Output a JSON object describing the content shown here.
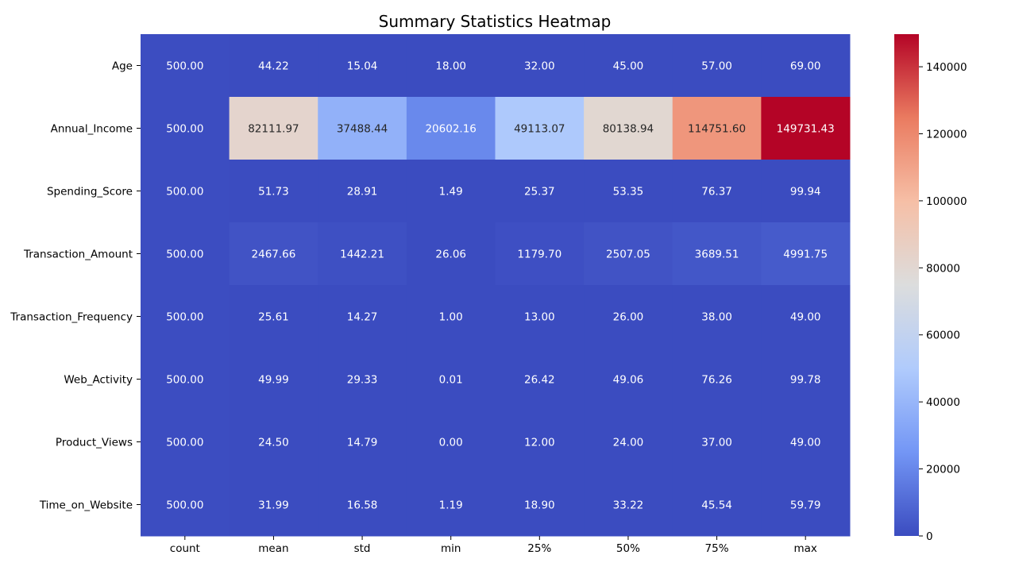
{
  "chart_data": {
    "type": "heatmap",
    "title": "Summary Statistics Heatmap",
    "columns": [
      "count",
      "mean",
      "std",
      "min",
      "25%",
      "50%",
      "75%",
      "max"
    ],
    "rows": [
      "Age",
      "Annual_Income",
      "Spending_Score",
      "Transaction_Amount",
      "Transaction_Frequency",
      "Web_Activity",
      "Product_Views",
      "Time_on_Website"
    ],
    "values": [
      [
        500.0,
        44.22,
        15.04,
        18.0,
        32.0,
        45.0,
        57.0,
        69.0
      ],
      [
        500.0,
        82111.97,
        37488.44,
        20602.16,
        49113.07,
        80138.94,
        114751.6,
        149731.43
      ],
      [
        500.0,
        51.73,
        28.91,
        1.49,
        25.37,
        53.35,
        76.37,
        99.94
      ],
      [
        500.0,
        2467.66,
        1442.21,
        26.06,
        1179.7,
        2507.05,
        3689.51,
        4991.75
      ],
      [
        500.0,
        25.61,
        14.27,
        1.0,
        13.0,
        26.0,
        38.0,
        49.0
      ],
      [
        500.0,
        49.99,
        29.33,
        0.01,
        26.42,
        49.06,
        76.26,
        99.78
      ],
      [
        500.0,
        24.5,
        14.79,
        0.0,
        12.0,
        24.0,
        37.0,
        49.0
      ],
      [
        500.0,
        31.99,
        16.58,
        1.19,
        18.9,
        33.22,
        45.54,
        59.79
      ]
    ],
    "value_format_decimals": 2,
    "colormap": "coolwarm",
    "colormap_stops": [
      "#3b4cc0",
      "#7396f5",
      "#b0cbfc",
      "#dcdddd",
      "#f6bfa6",
      "#ea7b60",
      "#b40426"
    ],
    "color_range": [
      0,
      149731.43
    ],
    "colorbar_ticks": [
      0,
      20000,
      40000,
      60000,
      80000,
      100000,
      120000,
      140000
    ]
  }
}
